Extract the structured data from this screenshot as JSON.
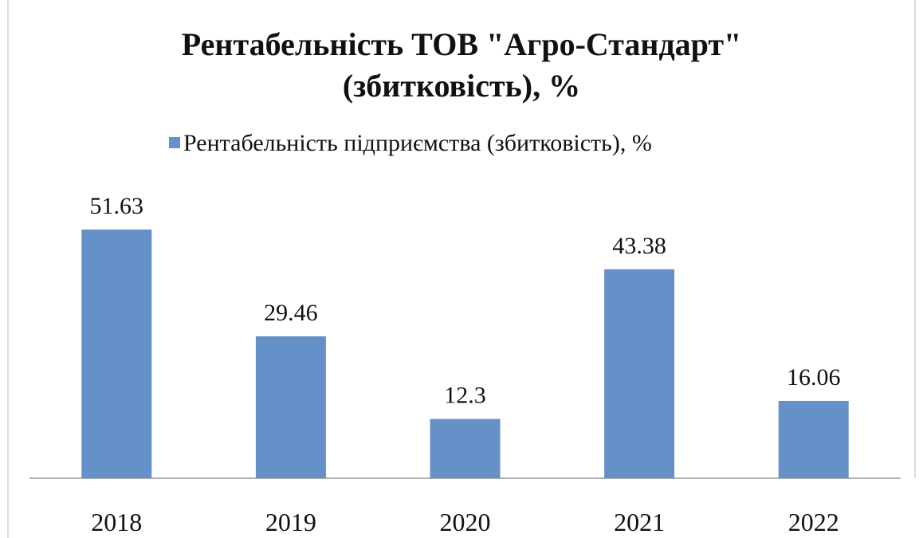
{
  "chart_data": {
    "type": "bar",
    "title": "Рентабельність ТОВ \"Агро-Стандарт\" (збитковість), %",
    "categories": [
      "2018",
      "2019",
      "2020",
      "2021",
      "2022"
    ],
    "series": [
      {
        "name": "Рентабельність підприємства (збитковість), %",
        "color": "#6690c8",
        "values": [
          51.63,
          29.46,
          12.3,
          43.38,
          16.06
        ]
      }
    ]
  }
}
